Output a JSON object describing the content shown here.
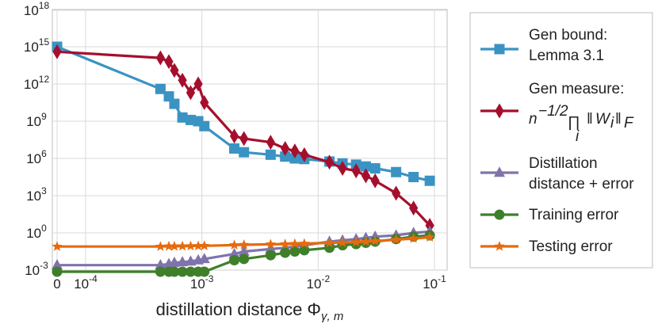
{
  "chart_data": {
    "type": "line",
    "xlabel": "distillation distance Φγ,m",
    "xlabel_text": "distillation distance Φ",
    "xlabel_subscript": "γ, m",
    "yscale": "log",
    "ylim_exp": [
      -3,
      18
    ],
    "x_ticks": [
      {
        "label": "0",
        "x": 0
      },
      {
        "base": "10",
        "exp": "-4",
        "x": 0.0001
      },
      {
        "base": "10",
        "exp": "-3",
        "x": 0.001
      },
      {
        "base": "10",
        "exp": "-2",
        "x": 0.01
      },
      {
        "base": "10",
        "exp": "-1",
        "x": 0.1
      }
    ],
    "y_ticks": [
      {
        "base": "10",
        "exp": "-3",
        "y_exp": -3
      },
      {
        "base": "10",
        "exp": "0",
        "y_exp": 0
      },
      {
        "base": "10",
        "exp": "3",
        "y_exp": 3
      },
      {
        "base": "10",
        "exp": "6",
        "y_exp": 6
      },
      {
        "base": "10",
        "exp": "9",
        "y_exp": 9
      },
      {
        "base": "10",
        "exp": "12",
        "y_exp": 12
      },
      {
        "base": "10",
        "exp": "15",
        "y_exp": 15
      },
      {
        "base": "10",
        "exp": "18",
        "y_exp": 18
      }
    ],
    "x": [
      0,
      0.00044,
      0.00052,
      0.00058,
      0.00068,
      0.0008,
      0.00093,
      0.00105,
      0.0019,
      0.0023,
      0.0039,
      0.0052,
      0.0063,
      0.0076,
      0.0125,
      0.0162,
      0.0212,
      0.0257,
      0.0309,
      0.0468,
      0.0661,
      0.0912
    ],
    "series": [
      {
        "name": "Gen bound: Lemma 3.1",
        "legend_lines": [
          "Gen bound:",
          "Lemma 3.1"
        ],
        "color": "#3a93c3",
        "marker": "square",
        "y_exp": [
          15.0,
          11.6,
          11.0,
          10.4,
          9.3,
          9.1,
          9.0,
          8.6,
          6.8,
          6.5,
          6.3,
          6.15,
          6.0,
          5.95,
          5.75,
          5.6,
          5.5,
          5.35,
          5.2,
          4.9,
          4.5,
          4.2
        ]
      },
      {
        "name": "Gen measure",
        "legend_lines": [
          "Gen measure:"
        ],
        "legend_formula": "n⁻¹ᐟ² ∏ᵢ ‖Wᵢ‖_F",
        "color": "#a50f2d",
        "marker": "diamond",
        "y_exp": [
          14.6,
          14.1,
          13.8,
          13.1,
          12.3,
          11.3,
          12.0,
          10.5,
          7.8,
          7.6,
          7.3,
          6.8,
          6.6,
          6.3,
          5.7,
          5.2,
          5.0,
          4.6,
          4.2,
          3.2,
          2.0,
          0.6
        ]
      },
      {
        "name": "Distillation distance + error",
        "legend_lines": [
          "Distillation",
          "distance + error"
        ],
        "color": "#8073ac",
        "marker": "triangle",
        "y_exp": [
          -2.6,
          -2.6,
          -2.5,
          -2.4,
          -2.35,
          -2.3,
          -2.2,
          -2.1,
          -1.7,
          -1.5,
          -1.3,
          -1.2,
          -1.1,
          -1.0,
          -0.7,
          -0.6,
          -0.5,
          -0.4,
          -0.3,
          -0.2,
          0.0,
          0.1
        ]
      },
      {
        "name": "Training error",
        "legend_lines": [
          "Training error"
        ],
        "color": "#3f7f2a",
        "marker": "circle",
        "y_exp": [
          -3.5,
          -3.5,
          -3.5,
          -3.5,
          -3.5,
          -3.5,
          -3.45,
          -3.4,
          -2.2,
          -2.1,
          -1.8,
          -1.6,
          -1.5,
          -1.4,
          -1.2,
          -1.0,
          -0.9,
          -0.8,
          -0.7,
          -0.5,
          -0.3,
          -0.2
        ]
      },
      {
        "name": "Testing error",
        "legend_lines": [
          "Testing error"
        ],
        "color": "#e66a0e",
        "marker": "star",
        "y_exp": [
          -1.1,
          -1.1,
          -1.08,
          -1.08,
          -1.07,
          -1.06,
          -1.05,
          -1.04,
          -0.98,
          -0.96,
          -0.92,
          -0.9,
          -0.88,
          -0.86,
          -0.8,
          -0.78,
          -0.74,
          -0.7,
          -0.66,
          -0.55,
          -0.45,
          -0.35
        ]
      }
    ],
    "legend": "right"
  }
}
